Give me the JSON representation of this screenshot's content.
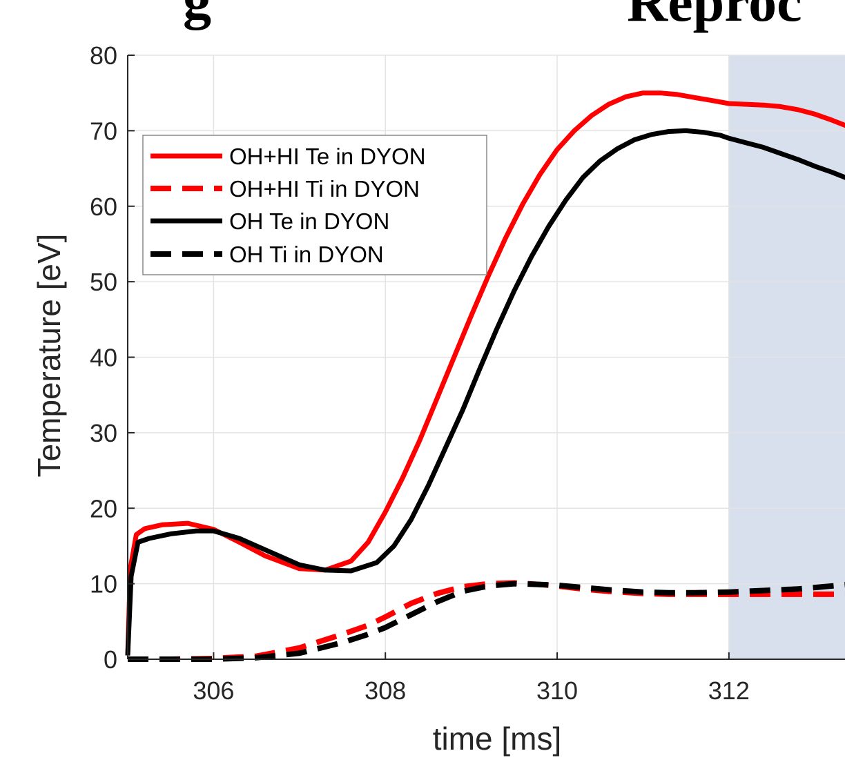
{
  "header": {
    "left_fragment": "g",
    "right_fragment": "Reproc"
  },
  "chart_data": {
    "type": "line",
    "xlabel": "time [ms]",
    "ylabel": "Temperature [eV]",
    "xlim": [
      305,
      313.4
    ],
    "ylim": [
      0,
      80
    ],
    "xticks": [
      306,
      308,
      310,
      312
    ],
    "yticks": [
      0,
      10,
      20,
      30,
      40,
      50,
      60,
      70,
      80
    ],
    "grid": true,
    "legend_position": "upper-left",
    "shaded_region": {
      "x_start": 312,
      "x_end": 313.4,
      "color": "#c9d5e6"
    },
    "series": [
      {
        "name": "OH+HI Te in DYON",
        "color": "#ff0000",
        "style": "solid",
        "x": [
          305.0,
          305.03,
          305.1,
          305.2,
          305.4,
          305.7,
          306.0,
          306.3,
          306.6,
          307.0,
          307.3,
          307.6,
          307.8,
          308.0,
          308.2,
          308.4,
          308.6,
          308.8,
          309.0,
          309.2,
          309.4,
          309.6,
          309.8,
          310.0,
          310.2,
          310.4,
          310.6,
          310.8,
          311.0,
          311.2,
          311.4,
          311.6,
          311.8,
          312.0,
          312.2,
          312.4,
          312.6,
          312.8,
          313.0,
          313.2,
          313.4
        ],
        "y": [
          0.5,
          12.0,
          16.5,
          17.3,
          17.8,
          18.0,
          17.2,
          15.5,
          13.7,
          12.0,
          11.8,
          13.0,
          15.5,
          19.5,
          24.0,
          29.0,
          34.5,
          40.0,
          45.5,
          50.8,
          55.8,
          60.3,
          64.2,
          67.5,
          70.0,
          72.0,
          73.5,
          74.5,
          75.0,
          75.0,
          74.8,
          74.4,
          74.0,
          73.6,
          73.5,
          73.4,
          73.2,
          72.8,
          72.2,
          71.4,
          70.5
        ]
      },
      {
        "name": "OH+HI Ti in DYON",
        "color": "#ff0000",
        "style": "dashed",
        "x": [
          305.0,
          305.5,
          306.0,
          306.5,
          307.0,
          307.5,
          307.8,
          308.0,
          308.3,
          308.6,
          308.9,
          309.2,
          309.5,
          309.8,
          310.0,
          310.3,
          310.6,
          311.0,
          311.3,
          311.6,
          312.0,
          312.4,
          312.8,
          313.1,
          313.4
        ],
        "y": [
          0.0,
          0.0,
          0.1,
          0.4,
          1.5,
          3.3,
          4.5,
          5.6,
          7.4,
          8.7,
          9.6,
          10.0,
          10.1,
          9.9,
          9.7,
          9.3,
          9.0,
          8.7,
          8.6,
          8.6,
          8.6,
          8.6,
          8.6,
          8.6,
          8.6
        ]
      },
      {
        "name": "OH Te in DYON",
        "color": "#000000",
        "style": "solid",
        "x": [
          305.0,
          305.04,
          305.12,
          305.25,
          305.5,
          305.8,
          306.0,
          306.3,
          306.6,
          307.0,
          307.3,
          307.6,
          307.9,
          308.1,
          308.3,
          308.5,
          308.7,
          308.9,
          309.1,
          309.3,
          309.5,
          309.7,
          309.9,
          310.1,
          310.3,
          310.5,
          310.7,
          310.9,
          311.1,
          311.3,
          311.5,
          311.7,
          311.9,
          312.0,
          312.2,
          312.4,
          312.6,
          312.8,
          313.0,
          313.2,
          313.4
        ],
        "y": [
          0.5,
          11.0,
          15.5,
          16.0,
          16.6,
          17.0,
          17.0,
          16.0,
          14.5,
          12.5,
          11.8,
          11.7,
          12.8,
          15.0,
          18.5,
          23.0,
          28.0,
          33.0,
          38.5,
          43.8,
          48.8,
          53.3,
          57.3,
          60.8,
          63.8,
          66.0,
          67.6,
          68.8,
          69.5,
          69.9,
          70.0,
          69.8,
          69.4,
          69.0,
          68.4,
          67.8,
          67.0,
          66.2,
          65.3,
          64.5,
          63.6
        ]
      },
      {
        "name": "OH Ti in DYON",
        "color": "#000000",
        "style": "dashed",
        "x": [
          305.0,
          305.5,
          306.0,
          306.5,
          307.0,
          307.5,
          307.8,
          308.0,
          308.3,
          308.6,
          308.9,
          309.2,
          309.5,
          309.8,
          310.0,
          310.3,
          310.6,
          311.0,
          311.3,
          311.6,
          312.0,
          312.4,
          312.8,
          313.1,
          313.4
        ],
        "y": [
          0.0,
          0.0,
          0.0,
          0.2,
          0.8,
          2.2,
          3.3,
          4.2,
          5.9,
          7.6,
          9.0,
          9.7,
          10.0,
          9.9,
          9.8,
          9.5,
          9.2,
          8.9,
          8.8,
          8.8,
          8.9,
          9.1,
          9.3,
          9.6,
          9.9
        ]
      }
    ]
  }
}
